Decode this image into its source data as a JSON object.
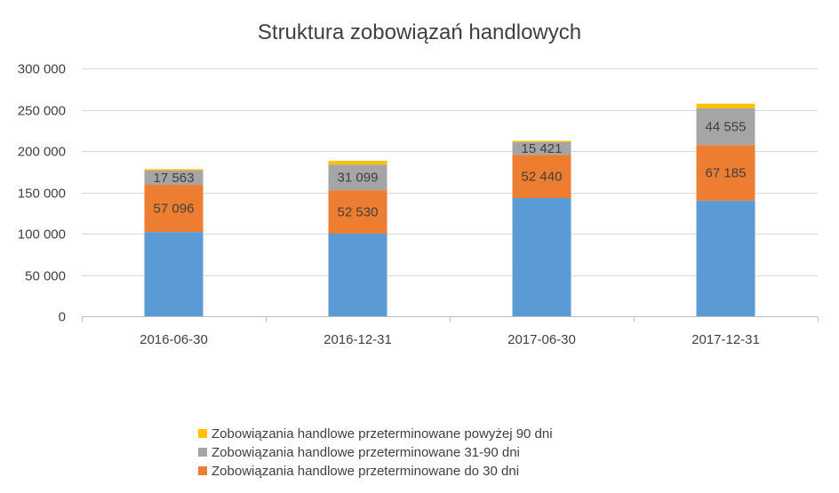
{
  "chart_data": {
    "type": "bar",
    "stacked": true,
    "title": "Struktura zobowiązań handlowych",
    "xlabel": "",
    "ylabel": "",
    "categories": [
      "2016-06-30",
      "2016-12-31",
      "2017-06-30",
      "2017-12-31"
    ],
    "ylim": [
      0,
      300000
    ],
    "yticks": [
      0,
      50000,
      100000,
      150000,
      200000,
      250000,
      300000
    ],
    "ytick_labels": [
      "0",
      "50 000",
      "100 000",
      "150 000",
      "200 000",
      "250 000",
      "300 000"
    ],
    "grid": true,
    "legend_position": "bottom",
    "series": [
      {
        "color": "#5B9BD5",
        "values": [
          102000,
          100000,
          143000,
          140000
        ],
        "labels": [
          "",
          "",
          "",
          ""
        ]
      },
      {
        "name": "Zobowiązania handlowe przeterminowane do 30 dni",
        "color": "#ED7D31",
        "values": [
          57096,
          52530,
          52440,
          67185
        ],
        "labels": [
          "57 096",
          "52 530",
          "52 440",
          "67 185"
        ]
      },
      {
        "name": "Zobowiązania handlowe przeterminowane 31-90 dni",
        "color": "#A5A5A5",
        "values": [
          17563,
          31099,
          15421,
          44555
        ],
        "labels": [
          "17 563",
          "31 099",
          "15 421",
          "44 555"
        ]
      },
      {
        "name": "Zobowiązania handlowe przeterminowane powyżej 90 dni",
        "color": "#FFC000",
        "values": [
          1500,
          4500,
          1500,
          5500
        ],
        "labels": [
          "",
          "",
          "",
          ""
        ]
      }
    ],
    "legend_order": [
      3,
      2,
      1
    ]
  }
}
